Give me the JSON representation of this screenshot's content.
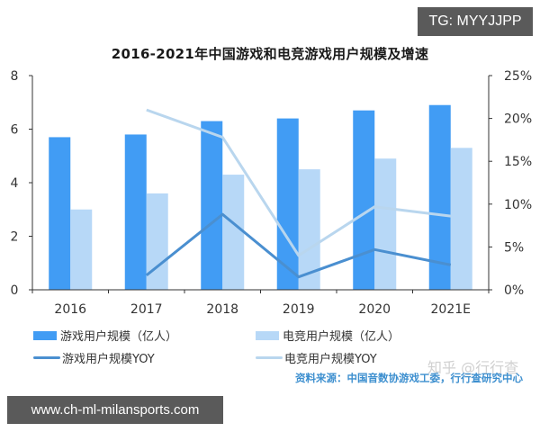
{
  "header": {
    "title": "2016-2021年中国游戏和电竞游戏用户规模及增速"
  },
  "overlay_tags": {
    "top_right": "TG: MYYJJPP",
    "bottom_left": "www.ch-ml-milansports.com"
  },
  "watermark": "知乎 @行行查",
  "source_text": "资料来源：中国音数协游戏工委，行行查研究中心",
  "colors": {
    "game_bar": "#419cf4",
    "esports_bar": "#b7d8f7",
    "game_yoy_line": "#4a8fd0",
    "esports_yoy_line": "#b9d6ee",
    "axis": "#333333"
  },
  "legend": [
    {
      "label": "游戏用户规模（亿人）",
      "type": "bar",
      "color": "#419cf4"
    },
    {
      "label": "电竞用户规模（亿人）",
      "type": "bar",
      "color": "#b7d8f7"
    },
    {
      "label": "游戏用户规模YOY",
      "type": "line",
      "color": "#4a8fd0"
    },
    {
      "label": "电竞用户规模YOY",
      "type": "line",
      "color": "#b9d6ee"
    }
  ],
  "axes": {
    "left_ticks": [
      "0",
      "2",
      "4",
      "6",
      "8"
    ],
    "right_ticks": [
      "0%",
      "5%",
      "10%",
      "15%",
      "20%",
      "25%"
    ],
    "x_ticks": [
      "2016",
      "2017",
      "2018",
      "2019",
      "2020",
      "2021E"
    ]
  },
  "chart_data": {
    "type": "bar",
    "title": "2016-2021年中国游戏和电竞游戏用户规模及增速",
    "categories": [
      "2016",
      "2017",
      "2018",
      "2019",
      "2020",
      "2021E"
    ],
    "series": [
      {
        "name": "游戏用户规模（亿人）",
        "type": "bar",
        "axis": "left",
        "values": [
          5.7,
          5.8,
          6.3,
          6.4,
          6.7,
          6.9
        ]
      },
      {
        "name": "电竞用户规模（亿人）",
        "type": "bar",
        "axis": "left",
        "values": [
          3.0,
          3.6,
          4.3,
          4.5,
          4.9,
          5.3
        ]
      },
      {
        "name": "游戏用户规模YOY",
        "type": "line",
        "axis": "right",
        "values": [
          null,
          1.7,
          8.8,
          1.5,
          4.7,
          2.9
        ],
        "unit": "%"
      },
      {
        "name": "电竞用户规模YOY",
        "type": "line",
        "axis": "right",
        "values": [
          null,
          21.0,
          17.8,
          4.0,
          9.7,
          8.6
        ],
        "unit": "%"
      }
    ],
    "xlabel": "",
    "ylabel": "",
    "ylim": [
      0,
      8
    ],
    "y2lim": [
      0,
      25
    ],
    "grid": false,
    "legend_position": "bottom"
  }
}
